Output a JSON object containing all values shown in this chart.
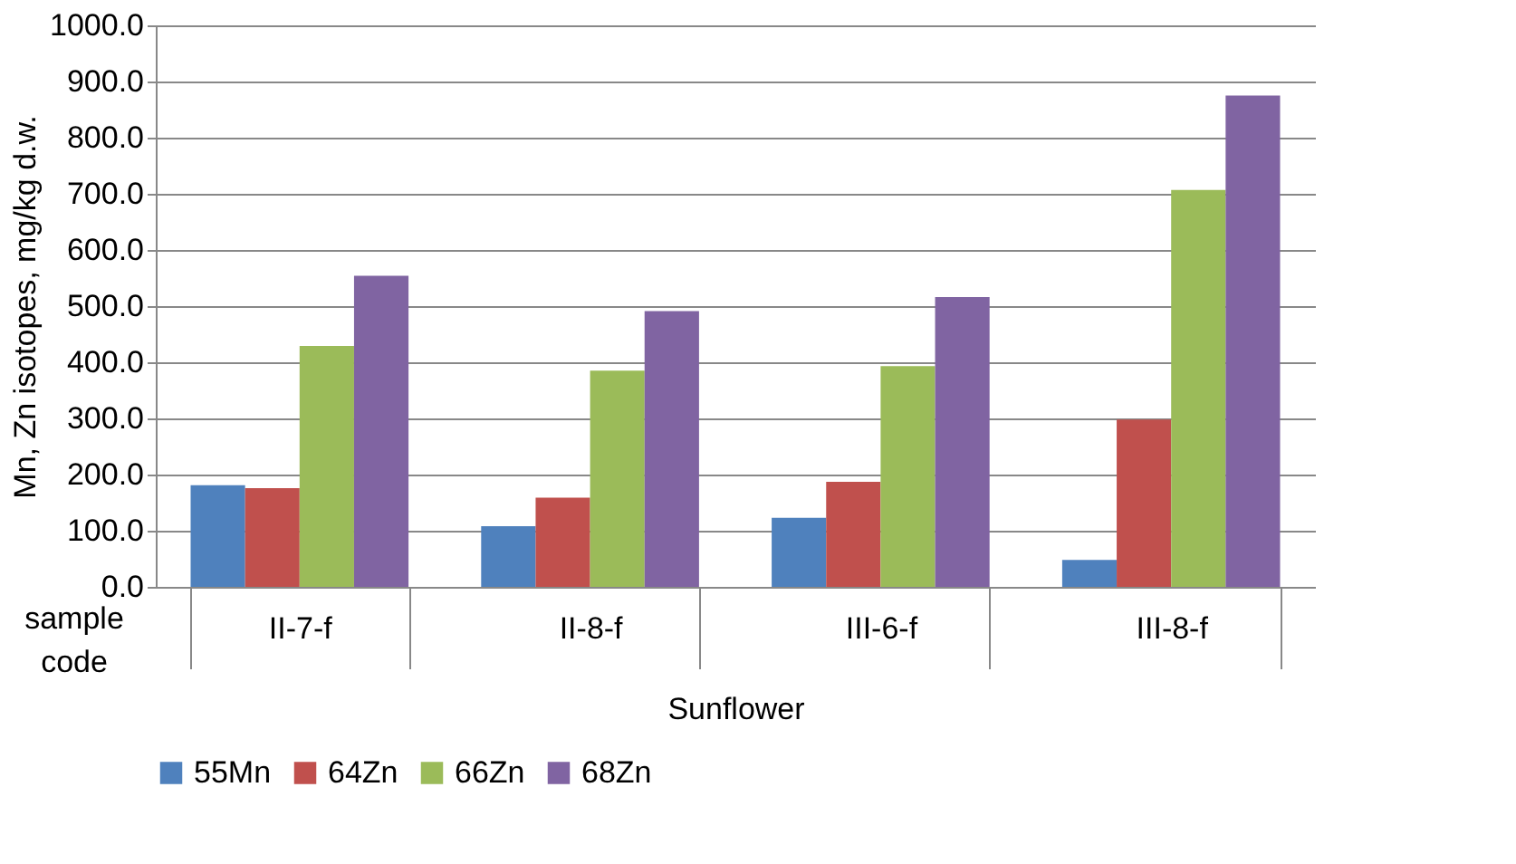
{
  "chart_data": {
    "type": "bar",
    "ylabel": "Mn, Zn isotopes, mg/kg d.w.",
    "xlabel": "Sunflower",
    "annotations": [
      "sample code"
    ],
    "categories": [
      "II-7-f",
      "II-8-f",
      "III-6-f",
      "III-8-f"
    ],
    "series": [
      {
        "name": "55Mn",
        "color": "#4f81bd",
        "values": [
          181,
          108,
          123,
          48
        ]
      },
      {
        "name": "64Zn",
        "color": "#c0504d",
        "values": [
          176,
          159,
          187,
          298
        ]
      },
      {
        "name": "66Zn",
        "color": "#9bbb59",
        "values": [
          429,
          385,
          393,
          707
        ]
      },
      {
        "name": "68Zn",
        "color": "#8064a2",
        "values": [
          554,
          491,
          516,
          875
        ]
      }
    ],
    "ylim": [
      0,
      1000
    ],
    "yticks": [
      {
        "value": 0,
        "label": "0.0"
      },
      {
        "value": 100,
        "label": "100.0"
      },
      {
        "value": 200,
        "label": "200.0"
      },
      {
        "value": 300,
        "label": "300.0"
      },
      {
        "value": 400,
        "label": "400.0"
      },
      {
        "value": 500,
        "label": "500.0"
      },
      {
        "value": 600,
        "label": "600.0"
      },
      {
        "value": 700,
        "label": "700.0"
      },
      {
        "value": 800,
        "label": "800.0"
      },
      {
        "value": 900,
        "label": "900.0"
      },
      {
        "value": 1000,
        "label": "1000.0"
      }
    ],
    "grid": "y",
    "legend": "bottom"
  }
}
